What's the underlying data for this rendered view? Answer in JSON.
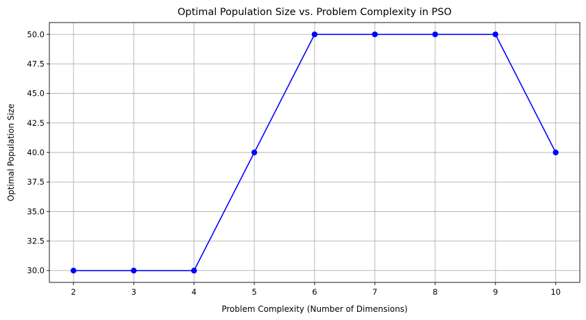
{
  "chart_data": {
    "type": "line",
    "title": "Optimal Population Size vs. Problem Complexity in PSO",
    "xlabel": "Problem Complexity (Number of Dimensions)",
    "ylabel": "Optimal Population Size",
    "x": [
      2,
      3,
      4,
      5,
      6,
      7,
      8,
      9,
      10
    ],
    "series": [
      {
        "values": [
          30,
          30,
          30,
          40,
          50,
          50,
          50,
          50,
          40
        ],
        "color": "#0000ff",
        "marker": "circle"
      }
    ],
    "xlim": [
      1.6,
      10.4
    ],
    "ylim": [
      29,
      51
    ],
    "xticks": [
      2,
      3,
      4,
      5,
      6,
      7,
      8,
      9,
      10
    ],
    "xtick_labels": [
      "2",
      "3",
      "4",
      "5",
      "6",
      "7",
      "8",
      "9",
      "10"
    ],
    "yticks": [
      30.0,
      32.5,
      35.0,
      37.5,
      40.0,
      42.5,
      45.0,
      47.5,
      50.0
    ],
    "ytick_labels": [
      "30.0",
      "32.5",
      "35.0",
      "37.5",
      "40.0",
      "42.5",
      "45.0",
      "47.5",
      "50.0"
    ],
    "grid": true
  }
}
